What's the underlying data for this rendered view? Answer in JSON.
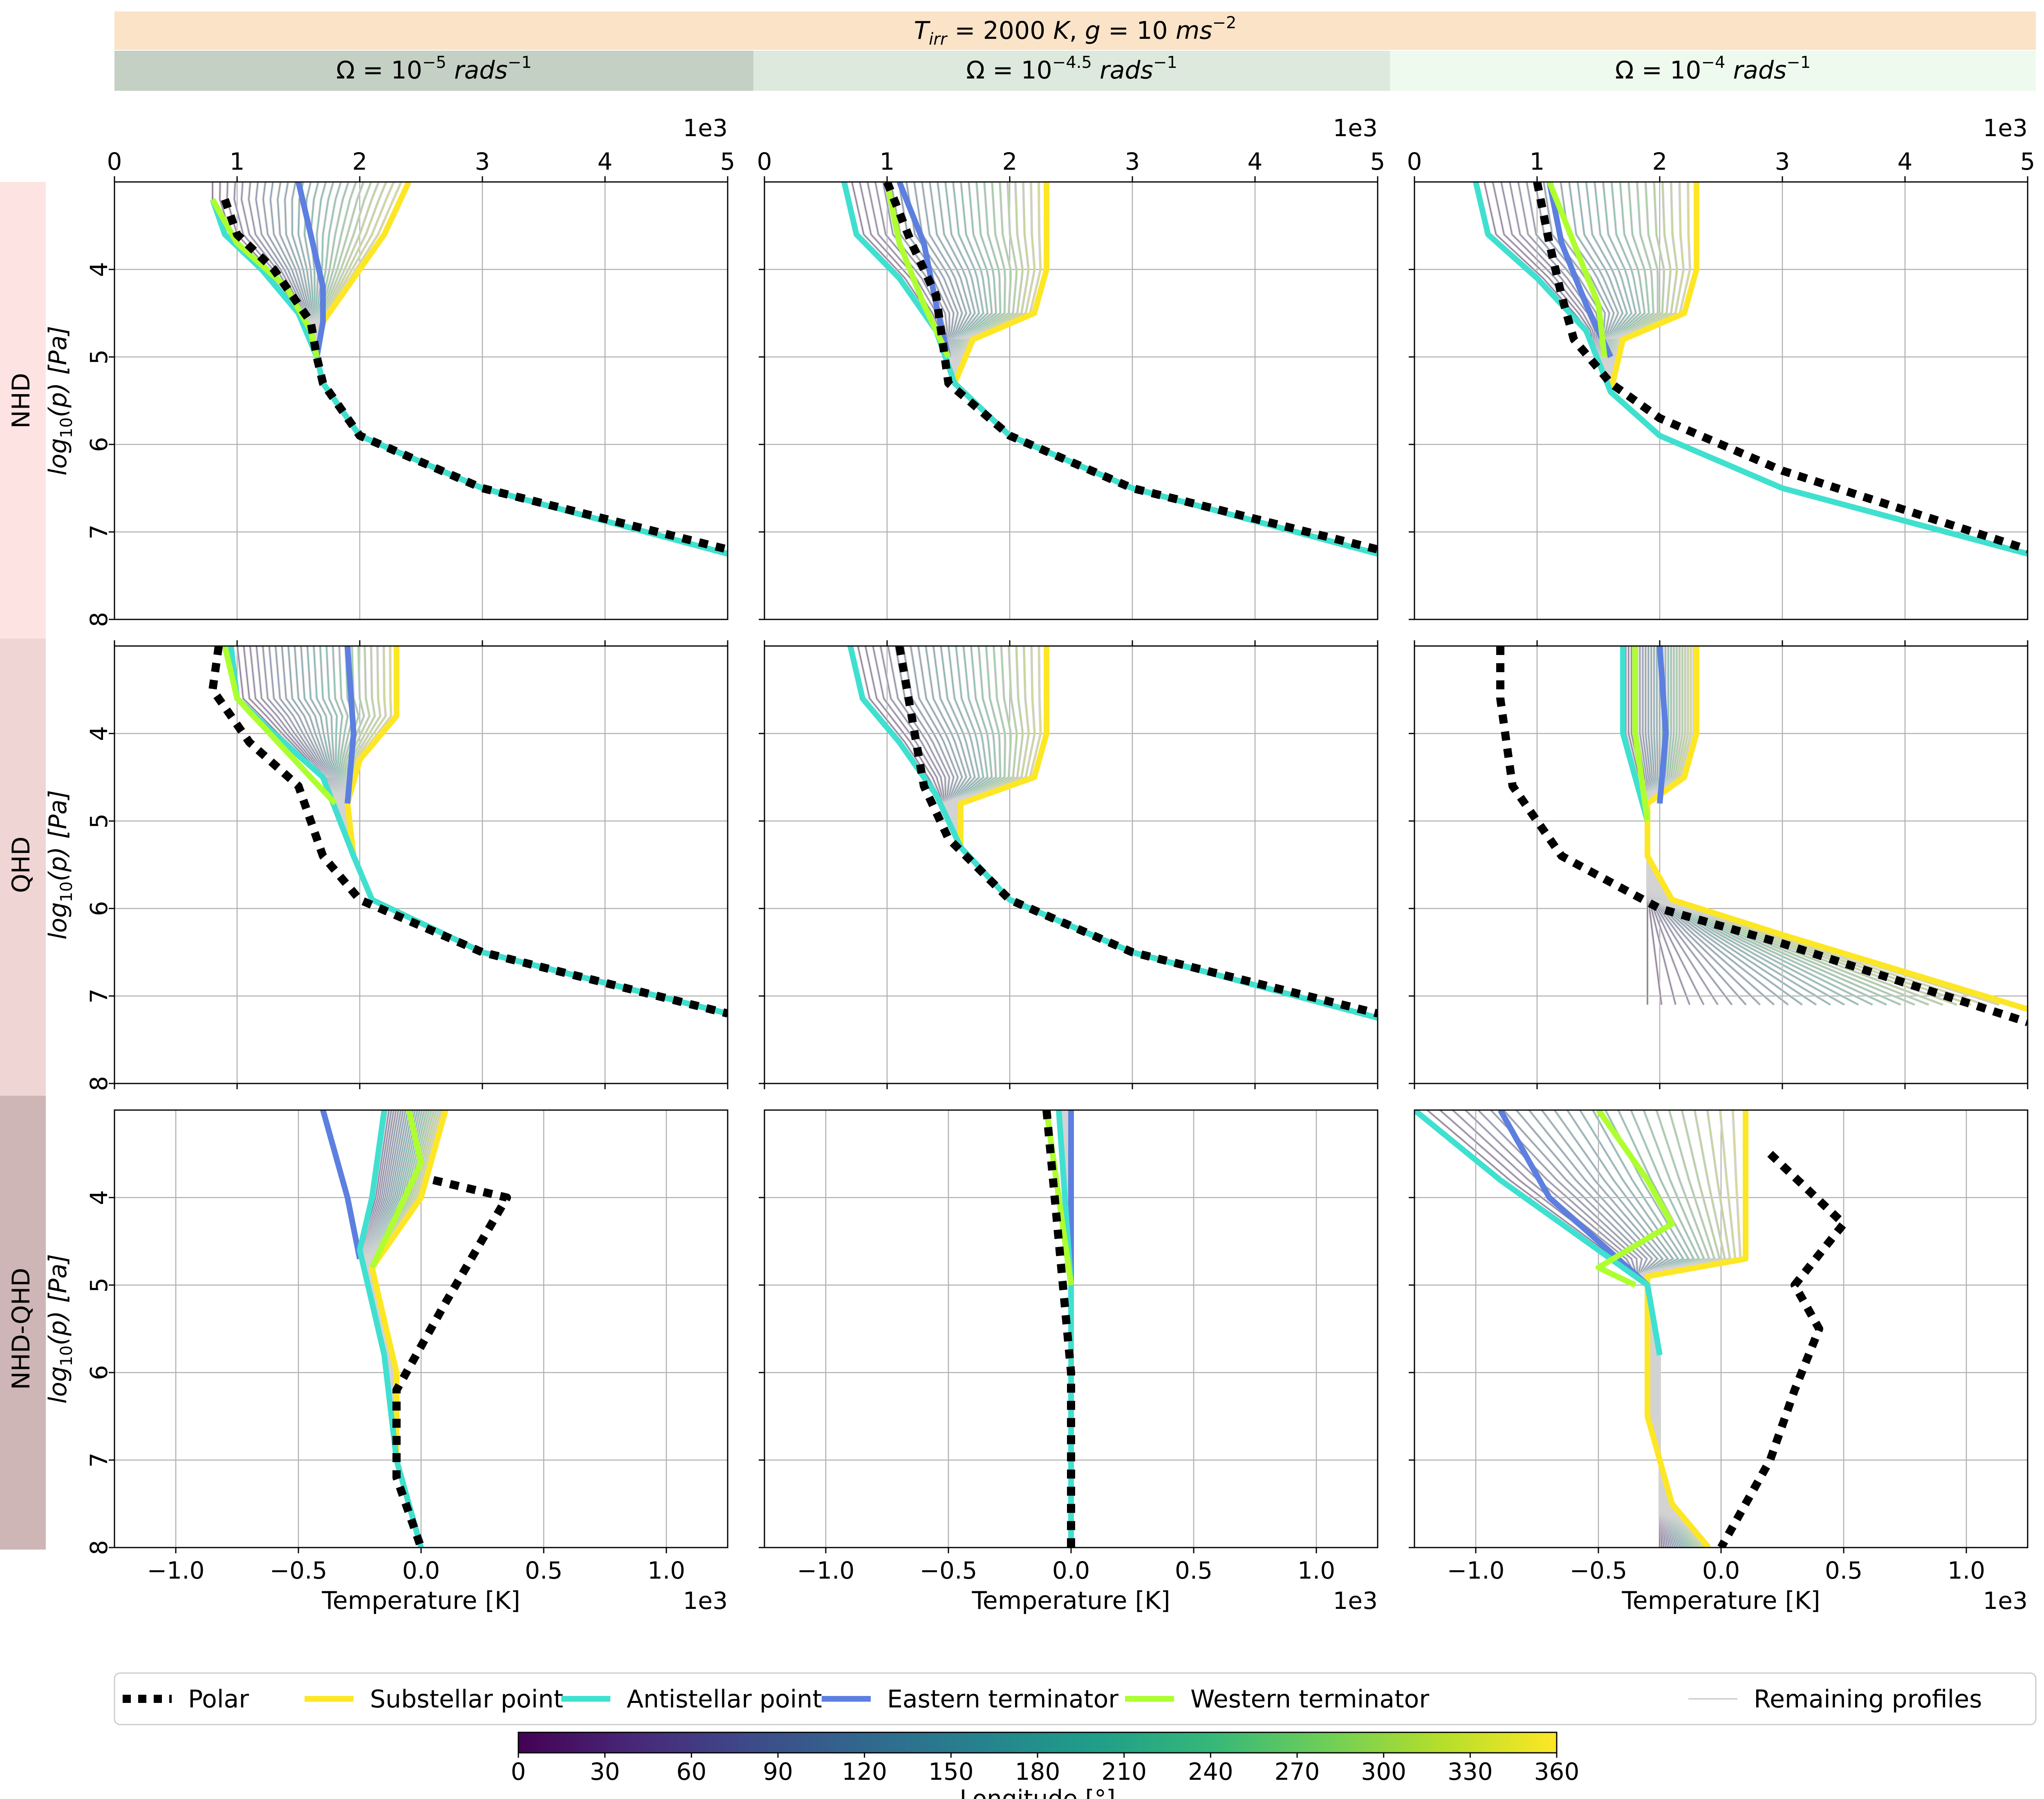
{
  "header": {
    "title": "T_irr = 2000 K,   g = 10 ms^-2",
    "title_parts": {
      "T": "T",
      "sub": "irr",
      "eq_temp": " = 2000 ",
      "K": "K",
      "comma": ",   ",
      "g": "g",
      "eq_g": " = 10 ",
      "ms": "ms",
      "exp": "−2"
    },
    "columns": [
      {
        "omega": "Ω = 10^-5 rads^-1",
        "sym": "Ω = 10",
        "exp": "−5",
        "unit": " rads",
        "uexp": "−1",
        "color": "#c4d0c4"
      },
      {
        "omega": "Ω = 10^-4.5 rads^-1",
        "sym": "Ω = 10",
        "exp": "−4.5",
        "unit": " rads",
        "uexp": "−1",
        "color": "#dde9dd"
      },
      {
        "omega": "Ω = 10^-4 rads^-1",
        "sym": "Ω = 10",
        "exp": "−4",
        "unit": " rads",
        "uexp": "−1",
        "color": "#eefaee"
      }
    ],
    "title_color": "#fbe3c8"
  },
  "rows": [
    {
      "label": "NHD",
      "color": "#fde4e2"
    },
    {
      "label": "QHD",
      "color": "#efd5d3"
    },
    {
      "label": "NHD-QHD",
      "color": "#cdb6b5"
    }
  ],
  "y_axis": {
    "label_main": "log",
    "label_sub": "10",
    "label_rest": "(p)  [Pa]",
    "ticks": [
      "4",
      "5",
      "6",
      "7",
      "8"
    ],
    "ylim": [
      3,
      8
    ]
  },
  "x_axis_top": {
    "ticks": [
      "0",
      "1",
      "2",
      "3",
      "4",
      "5"
    ],
    "scale_label": "1e3",
    "xlim": [
      0,
      5
    ]
  },
  "x_axis_bottom": {
    "ticks": [
      "−1.0",
      "−0.5",
      "0.0",
      "0.5",
      "1.0"
    ],
    "scale_label": "1e3",
    "xlim": [
      -1.25,
      1.25
    ],
    "label": "Temperature [K]"
  },
  "legend": {
    "items": [
      {
        "label": "Polar",
        "color": "#000000",
        "style": "dotted"
      },
      {
        "label": "Substellar point",
        "color": "#fde725",
        "style": "solid"
      },
      {
        "label": "Antistellar point",
        "color": "#40e0d0",
        "style": "solid"
      },
      {
        "label": "Eastern terminator",
        "color": "#5c7fe0",
        "style": "solid"
      },
      {
        "label": "Western terminator",
        "color": "#adff2f",
        "style": "solid"
      },
      {
        "label": "Remaining profiles",
        "color": "#d3d3d3",
        "style": "thin"
      }
    ]
  },
  "colorbar": {
    "label": "Longitude [°]",
    "ticks": [
      "0",
      "30",
      "60",
      "90",
      "120",
      "150",
      "180",
      "210",
      "240",
      "270",
      "300",
      "330",
      "360"
    ],
    "range": [
      0,
      360
    ],
    "stops": [
      "#440154",
      "#482878",
      "#3e4a89",
      "#31688e",
      "#26828e",
      "#1f9e89",
      "#35b779",
      "#6ece58",
      "#b5de2b",
      "#fde725"
    ]
  },
  "chart_data": {
    "type": "line",
    "title": "T_irr = 2000 K, g = 10 ms^-2",
    "panels": [
      {
        "row": "NHD",
        "col": 0,
        "xunits": "1e3 K",
        "xlim": [
          0,
          5
        ],
        "ylim": [
          3,
          8
        ],
        "series": [
          {
            "name": "Polar",
            "x": [
              0.9,
              1.0,
              1.3,
              1.6,
              1.65,
              1.7,
              2.0,
              3.0,
              5.0
            ],
            "y": [
              3.2,
              3.6,
              4.0,
              4.6,
              5.0,
              5.3,
              5.9,
              6.5,
              7.2
            ]
          },
          {
            "name": "Substellar point",
            "x": [
              2.4,
              2.2,
              1.9,
              1.7,
              1.65,
              1.7,
              2.0,
              3.0,
              5.0
            ],
            "y": [
              3.0,
              3.6,
              4.2,
              4.6,
              5.0,
              5.3,
              5.9,
              6.5,
              7.25
            ]
          },
          {
            "name": "Antistellar point",
            "x": [
              0.8,
              0.9,
              1.2,
              1.5,
              1.65,
              1.7,
              2.0,
              3.0,
              5.0
            ],
            "y": [
              3.2,
              3.6,
              4.0,
              4.5,
              5.0,
              5.3,
              5.9,
              6.5,
              7.25
            ]
          },
          {
            "name": "Eastern terminator",
            "x": [
              1.5,
              1.6,
              1.7,
              1.7,
              1.65
            ],
            "y": [
              3.0,
              3.6,
              4.2,
              4.6,
              5.0
            ]
          },
          {
            "name": "Western terminator",
            "x": [
              0.8,
              1.0,
              1.4,
              1.6,
              1.65
            ],
            "y": [
              3.2,
              3.7,
              4.2,
              4.7,
              5.0
            ]
          }
        ]
      },
      {
        "row": "NHD",
        "col": 1,
        "xunits": "1e3 K",
        "xlim": [
          0,
          5
        ],
        "ylim": [
          3,
          8
        ],
        "series": [
          {
            "name": "Polar",
            "x": [
              1.0,
              1.2,
              1.4,
              1.45,
              1.5,
              2.0,
              3.0,
              5.0
            ],
            "y": [
              3.0,
              3.7,
              4.3,
              4.8,
              5.3,
              5.9,
              6.5,
              7.2
            ]
          },
          {
            "name": "Substellar point",
            "x": [
              2.3,
              2.3,
              2.2,
              1.7,
              1.55,
              2.0,
              3.0,
              5.0
            ],
            "y": [
              3.0,
              4.0,
              4.5,
              4.8,
              5.3,
              5.9,
              6.5,
              7.25
            ]
          },
          {
            "name": "Antistellar point",
            "x": [
              0.65,
              0.75,
              1.1,
              1.4,
              1.55,
              2.0,
              3.0,
              5.0
            ],
            "y": [
              3.0,
              3.6,
              4.1,
              4.7,
              5.3,
              5.9,
              6.5,
              7.25
            ]
          },
          {
            "name": "Eastern terminator",
            "x": [
              1.1,
              1.3,
              1.4,
              1.5
            ],
            "y": [
              3.0,
              3.7,
              4.4,
              5.0
            ]
          },
          {
            "name": "Western terminator",
            "x": [
              1.0,
              1.1,
              1.3,
              1.5
            ],
            "y": [
              3.0,
              3.7,
              4.4,
              5.0
            ]
          }
        ]
      },
      {
        "row": "NHD",
        "col": 2,
        "xunits": "1e3 K",
        "xlim": [
          0,
          5
        ],
        "ylim": [
          3,
          8
        ],
        "series": [
          {
            "name": "Polar",
            "x": [
              1.0,
              1.1,
              1.2,
              1.3,
              1.6,
              2.0,
              3.0,
              5.0
            ],
            "y": [
              3.0,
              3.7,
              4.3,
              4.8,
              5.3,
              5.7,
              6.3,
              7.2
            ]
          },
          {
            "name": "Substellar point",
            "x": [
              2.3,
              2.3,
              2.2,
              1.7,
              1.6,
              2.0,
              3.0,
              5.0
            ],
            "y": [
              3.0,
              4.0,
              4.5,
              4.8,
              5.4,
              5.9,
              6.5,
              7.25
            ]
          },
          {
            "name": "Antistellar point",
            "x": [
              0.5,
              0.6,
              1.0,
              1.4,
              1.6,
              2.0,
              3.0,
              5.0
            ],
            "y": [
              3.0,
              3.6,
              4.1,
              4.7,
              5.4,
              5.9,
              6.5,
              7.25
            ]
          },
          {
            "name": "Eastern terminator",
            "x": [
              1.1,
              1.2,
              1.4,
              1.6
            ],
            "y": [
              3.0,
              3.7,
              4.4,
              5.0
            ]
          },
          {
            "name": "Western terminator",
            "x": [
              1.1,
              1.3,
              1.5,
              1.55
            ],
            "y": [
              3.0,
              3.7,
              4.4,
              5.0
            ]
          }
        ]
      },
      {
        "row": "QHD",
        "col": 0,
        "xunits": "1e3 K",
        "xlim": [
          0,
          5
        ],
        "ylim": [
          3,
          8
        ],
        "series": [
          {
            "name": "Polar",
            "x": [
              0.85,
              0.8,
              1.1,
              1.5,
              1.7,
              2.0,
              3.0,
              5.0
            ],
            "y": [
              3.0,
              3.5,
              4.1,
              4.6,
              5.4,
              5.9,
              6.5,
              7.2
            ]
          },
          {
            "name": "Substellar point",
            "x": [
              2.3,
              2.3,
              2.0,
              1.9,
              1.95,
              2.1,
              3.0,
              5.0
            ],
            "y": [
              3.0,
              3.8,
              4.3,
              4.8,
              5.4,
              5.9,
              6.5,
              7.2
            ]
          },
          {
            "name": "Antistellar point",
            "x": [
              0.95,
              1.0,
              1.3,
              1.7,
              1.95,
              2.1,
              3.0,
              5.0
            ],
            "y": [
              3.0,
              3.6,
              4.0,
              4.5,
              5.4,
              5.9,
              6.5,
              7.2
            ]
          },
          {
            "name": "Eastern terminator",
            "x": [
              1.9,
              1.95,
              1.9
            ],
            "y": [
              3.0,
              4.0,
              4.8
            ]
          },
          {
            "name": "Western terminator",
            "x": [
              0.9,
              1.0,
              1.4,
              1.8
            ],
            "y": [
              3.0,
              3.6,
              4.2,
              4.8
            ]
          }
        ]
      },
      {
        "row": "QHD",
        "col": 1,
        "xunits": "1e3 K",
        "xlim": [
          0,
          5
        ],
        "ylim": [
          3,
          8
        ],
        "series": [
          {
            "name": "Polar",
            "x": [
              1.1,
              1.2,
              1.3,
              1.5,
              2.0,
              3.0,
              5.0
            ],
            "y": [
              3.0,
              3.8,
              4.6,
              5.2,
              5.9,
              6.5,
              7.2
            ]
          },
          {
            "name": "Substellar point",
            "x": [
              2.3,
              2.3,
              2.2,
              1.6,
              1.6,
              2.0,
              3.0,
              5.0
            ],
            "y": [
              3.0,
              4.0,
              4.5,
              4.8,
              5.3,
              5.9,
              6.5,
              7.25
            ]
          },
          {
            "name": "Antistellar point",
            "x": [
              0.7,
              0.8,
              1.1,
              1.4,
              1.6,
              2.0,
              3.0,
              5.0
            ],
            "y": [
              3.0,
              3.6,
              4.1,
              4.7,
              5.3,
              5.9,
              6.5,
              7.25
            ]
          }
        ]
      },
      {
        "row": "QHD",
        "col": 2,
        "xunits": "1e3 K",
        "xlim": [
          0,
          5
        ],
        "ylim": [
          3,
          8
        ],
        "series": [
          {
            "name": "Polar",
            "x": [
              0.7,
              0.7,
              0.8,
              1.2,
              2.0,
              3.0,
              5.0
            ],
            "y": [
              3.0,
              3.6,
              4.6,
              5.4,
              6.0,
              6.4,
              7.3
            ]
          },
          {
            "name": "Substellar point",
            "x": [
              2.3,
              2.3,
              2.2,
              1.9,
              1.9,
              2.1,
              3.0,
              5.0
            ],
            "y": [
              3.0,
              4.0,
              4.5,
              4.8,
              5.4,
              5.9,
              6.3,
              7.15
            ]
          },
          {
            "name": "Antistellar point",
            "x": [
              1.7,
              1.7,
              1.9
            ],
            "y": [
              3.0,
              4.0,
              5.0
            ]
          },
          {
            "name": "Eastern terminator",
            "x": [
              2.0,
              2.05,
              2.0
            ],
            "y": [
              3.0,
              4.0,
              4.8
            ]
          },
          {
            "name": "Western terminator",
            "x": [
              1.8,
              1.8,
              1.9
            ],
            "y": [
              3.0,
              4.0,
              5.0
            ]
          }
        ]
      },
      {
        "row": "NHD-QHD",
        "col": 0,
        "xunits": "1e3 K",
        "xlim": [
          -1.25,
          1.25
        ],
        "ylim": [
          3,
          8
        ],
        "series": [
          {
            "name": "Polar",
            "x": [
              0.05,
              0.35,
              0.1,
              -0.1,
              -0.1,
              0.0
            ],
            "y": [
              3.8,
              4.0,
              5.2,
              6.2,
              7.2,
              8.0
            ]
          },
          {
            "name": "Substellar point",
            "x": [
              0.1,
              0.0,
              -0.2,
              -0.1,
              -0.1,
              0.0
            ],
            "y": [
              3.0,
              4.0,
              4.8,
              6.0,
              7.0,
              8.0
            ]
          },
          {
            "name": "Antistellar point",
            "x": [
              -0.15,
              -0.2,
              -0.25,
              -0.15,
              -0.1,
              0.0
            ],
            "y": [
              3.0,
              4.0,
              4.6,
              5.8,
              7.0,
              8.0
            ]
          },
          {
            "name": "Eastern terminator",
            "x": [
              -0.4,
              -0.3,
              -0.25
            ],
            "y": [
              3.0,
              4.0,
              4.7
            ]
          },
          {
            "name": "Western terminator",
            "x": [
              -0.05,
              0.0,
              -0.1,
              -0.2
            ],
            "y": [
              3.0,
              3.6,
              4.2,
              4.8
            ]
          }
        ]
      },
      {
        "row": "NHD-QHD",
        "col": 1,
        "xunits": "1e3 K",
        "xlim": [
          -1.25,
          1.25
        ],
        "ylim": [
          3,
          8
        ],
        "series": [
          {
            "name": "Polar",
            "x": [
              -0.1,
              -0.05,
              0.0,
              0.0
            ],
            "y": [
              3.0,
              4.5,
              6.0,
              8.0
            ]
          },
          {
            "name": "Substellar point",
            "x": [
              0.0,
              0.0,
              0.0
            ],
            "y": [
              3.0,
              5.0,
              8.0
            ]
          },
          {
            "name": "Antistellar point",
            "x": [
              -0.05,
              0.0,
              0.0
            ],
            "y": [
              3.0,
              5.0,
              8.0
            ]
          },
          {
            "name": "Eastern terminator",
            "x": [
              0.0,
              0.0
            ],
            "y": [
              3.0,
              5.0
            ]
          },
          {
            "name": "Western terminator",
            "x": [
              -0.1,
              -0.05,
              0.0
            ],
            "y": [
              3.0,
              4.0,
              5.0
            ]
          }
        ]
      },
      {
        "row": "NHD-QHD",
        "col": 2,
        "xunits": "1e3 K",
        "xlim": [
          -1.25,
          1.25
        ],
        "ylim": [
          3,
          8
        ],
        "series": [
          {
            "name": "Polar",
            "x": [
              0.2,
              0.5,
              0.3,
              0.4,
              0.3,
              0.2,
              0.0
            ],
            "y": [
              3.5,
              4.3,
              5.0,
              5.5,
              6.2,
              7.0,
              8.0
            ]
          },
          {
            "name": "Substellar point",
            "x": [
              0.1,
              0.1,
              -0.3,
              -0.3,
              -0.3,
              -0.2,
              -0.05
            ],
            "y": [
              3.0,
              4.7,
              4.9,
              5.5,
              6.5,
              7.5,
              8.0
            ]
          },
          {
            "name": "Antistellar point",
            "x": [
              -1.25,
              -0.9,
              -0.5,
              -0.3,
              -0.25
            ],
            "y": [
              3.0,
              3.8,
              4.6,
              5.0,
              5.8
            ]
          },
          {
            "name": "Eastern terminator",
            "x": [
              -0.9,
              -0.7,
              -0.3
            ],
            "y": [
              3.0,
              4.0,
              5.0
            ]
          },
          {
            "name": "Western terminator",
            "x": [
              -0.5,
              -0.3,
              -0.2,
              -0.5,
              -0.35
            ],
            "y": [
              3.0,
              3.8,
              4.3,
              4.8,
              5.0
            ]
          }
        ]
      }
    ]
  }
}
